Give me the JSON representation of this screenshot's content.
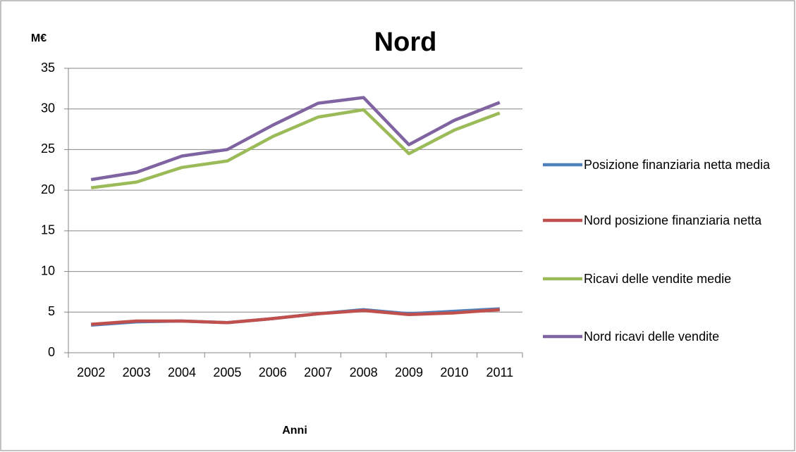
{
  "chart_data": {
    "type": "line",
    "title": "Nord",
    "y_label": "M€",
    "x_label": "Anni",
    "categories": [
      "2002",
      "2003",
      "2004",
      "2005",
      "2006",
      "2007",
      "2008",
      "2009",
      "2010",
      "2011"
    ],
    "ylim": [
      0,
      35
    ],
    "yticks": [
      0,
      5,
      10,
      15,
      20,
      25,
      30,
      35
    ],
    "grid": true,
    "legend": "right",
    "series": [
      {
        "name": "Posizione finanziaria netta media",
        "color": "#4f81bd",
        "values": [
          3.4,
          3.8,
          3.9,
          3.7,
          4.2,
          4.8,
          5.3,
          4.8,
          5.1,
          5.4
        ]
      },
      {
        "name": "Nord posizione finanziaria netta",
        "color": "#c0504d",
        "values": [
          3.5,
          3.9,
          3.9,
          3.7,
          4.2,
          4.8,
          5.2,
          4.7,
          4.9,
          5.3
        ]
      },
      {
        "name": "Ricavi delle vendite medie",
        "color": "#9bbb59",
        "values": [
          20.3,
          21.0,
          22.8,
          23.6,
          26.6,
          29.0,
          29.9,
          24.5,
          27.4,
          29.5
        ]
      },
      {
        "name": "Nord ricavi delle vendite",
        "color": "#8064a2",
        "values": [
          21.3,
          22.2,
          24.2,
          25.0,
          28.0,
          30.7,
          31.4,
          25.6,
          28.6,
          30.8
        ]
      }
    ]
  }
}
